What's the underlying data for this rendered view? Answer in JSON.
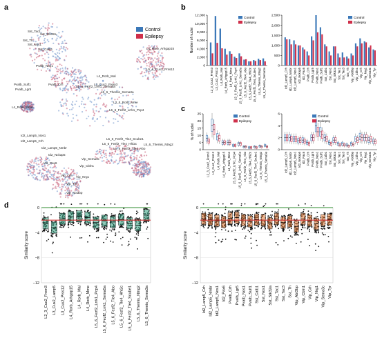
{
  "panels": {
    "a": "a",
    "b": "b",
    "c": "c",
    "d": "d"
  },
  "colors": {
    "control": "#3b78b8",
    "epilepsy": "#cf2f4a",
    "green_line": "#2e8b2e",
    "red_line": "#d22d2d",
    "teal_box": "#2f9a7c",
    "orange_box": "#e07a38",
    "umap_blue": "#6a8fc8",
    "umap_red": "#c8607a",
    "grid": "#d9d9d9"
  },
  "panel_a": {
    "legend": [
      "Control",
      "Epilepsy"
    ],
    "clusters": [
      "Sst_Tac1",
      "Sst_Stk32a",
      "Sst_Th",
      "Sst_Nos1",
      "Sst_Calb1",
      "Pvalb_Nos1",
      "Pvalb_Sulf1",
      "Pvalb_Lgr5",
      "Pvalb_Crh",
      "L4_Rorb_Mme",
      "L4_Rorb_Arhgap15",
      "L5_6_Cux2_Prss12",
      "L4_Rorb_Mal",
      "L3_Cux2_Frem3",
      "L5_6_Fezf2_Lrrk1_Sema5a",
      "L5_6_Themis_Sema3a",
      "L5_6_Fezf2_Lrrk1_Pcp4",
      "L3_5_Rorb_Mme",
      "Id2_Lamp5_Nos1",
      "Id2_Lamp5_Crh",
      "Id2_Lamp5_Nmbr",
      "Id2_Nckap5",
      "Id2_Pax6",
      "Vip_Sema3c",
      "Vip_Cbln1",
      "Vip_Crh",
      "Vip_Tyr",
      "Vip_Nrg1",
      "Vip_Abi3bp",
      "L5_6_Fezf2_Tle4_Scube1",
      "L5_6_Fezf2_Tle4_Hhl2c",
      "L5_6_Fezf2_Tle4_Abo",
      "L5_6_Themis_Ntng2"
    ]
  },
  "chart_data": [
    {
      "type": "bar",
      "panel": "b-left",
      "ylabel": "Number of nuclei",
      "ylim": [
        0,
        12000
      ],
      "yticks": [
        "0",
        "2,000",
        "4,000",
        "6,000",
        "8,000",
        "10,000",
        "12,000"
      ],
      "legend": [
        "Control",
        "Epilepsy"
      ],
      "categories": [
        "L2_3_Cux2_Frem3",
        "L3_Cux2_Prss12",
        "L4_Rorb_Mal",
        "L4_Rorb_Arhgap15",
        "L4_Rorb_Mme",
        "L5_6_Fezf2_Lrrk1_Pcp4",
        "L5_6_Fezf2_Lrrk1_Sema5a",
        "L5_6_Fezf2_Tle4_Abo",
        "L5_6_Fezf2_Tle4_Hhl2c",
        "L5_6_Fezf2_Tle4_Scube1",
        "L5_6_Themis_Ntng2",
        "L5_6_Themis_Sema3a"
      ],
      "series": [
        {
          "name": "Control",
          "values": [
            5500,
            11800,
            8800,
            4000,
            3400,
            2100,
            2900,
            1400,
            1000,
            1300,
            1600,
            1700
          ]
        },
        {
          "name": "Epilepsy",
          "values": [
            2900,
            5400,
            4100,
            2600,
            2800,
            1800,
            2200,
            1500,
            1000,
            1100,
            1300,
            1000
          ]
        }
      ]
    },
    {
      "type": "bar",
      "panel": "b-right",
      "ylim": [
        0,
        2500
      ],
      "yticks": [
        "0",
        "500",
        "1,000",
        "1,500",
        "2,000",
        "2,500"
      ],
      "categories": [
        "Id2_Lamp5_Crh",
        "Id2_Lamp5_Nmbr",
        "Id2_Lamp5_Nos1",
        "Id2_Nckap5",
        "Id2_Pax6",
        "Pvalb_Crh",
        "Pvalb_Lgr5",
        "Pvalb_Nos1",
        "Pvalb_Sulf1",
        "Sst_Calb1",
        "Sst_Nos1",
        "Sst_Stk32a",
        "Sst_Tac1",
        "Sst_Tac3",
        "Sst_Th",
        "Vip_Abi3bp",
        "Vip_Cbln1",
        "Vip_Crh",
        "Vip_Nrg1",
        "Vip_Sema3c",
        "Vip_Tyr"
      ],
      "series": [
        {
          "name": "Control",
          "values": [
            1400,
            1300,
            1250,
            1000,
            900,
            700,
            1450,
            2500,
            1900,
            1050,
            700,
            950,
            600,
            650,
            450,
            600,
            1100,
            1350,
            1200,
            900,
            800
          ]
        },
        {
          "name": "Epilepsy",
          "values": [
            1300,
            1050,
            1050,
            1000,
            800,
            500,
            1250,
            1650,
            1550,
            950,
            500,
            950,
            400,
            400,
            350,
            500,
            950,
            1100,
            1150,
            1000,
            750
          ]
        }
      ]
    },
    {
      "type": "box",
      "panel": "c-left",
      "ylabel": "% of nuclei",
      "ylim": [
        0,
        25
      ],
      "yticks": [
        "0",
        "5",
        "10",
        "15",
        "20",
        "25"
      ],
      "legend": [
        "Control",
        "Epilepsy"
      ],
      "categories": [
        "L2_3_Cux2_Frem3",
        "L3_Cux2_Prss12",
        "L4_Rorb_Mal",
        "L4_Rorb_Arhgap15",
        "L4_Rorb_Mme",
        "L5_6_Fezf2_Lrrk1_Pcp4",
        "L5_6_Fezf2_Lrrk1_Sema5a",
        "L5_6_Fezf2_Tle4_Abo",
        "L5_6_Fezf2_Tle4_Hhl2c",
        "L5_6_Fezf2_Tle4_Scube1",
        "L5_6_Themis_Ntng2",
        "L5_6_Themis_Sema3a"
      ],
      "series": [
        {
          "name": "Control",
          "medians": [
            8,
            17,
            9,
            5,
            5,
            3,
            4,
            2,
            1.5,
            2,
            2.5,
            3
          ]
        },
        {
          "name": "Epilepsy",
          "medians": [
            6,
            14,
            8,
            5,
            5,
            3,
            4,
            2,
            1.5,
            1.5,
            2,
            2
          ]
        }
      ]
    },
    {
      "type": "box",
      "panel": "c-right",
      "ylim": [
        0,
        6
      ],
      "yticks": [
        "0",
        "2",
        "4",
        "6"
      ],
      "categories": [
        "Id2_Lamp5_Crh",
        "Id2_Lamp5_Nmbr",
        "Id2_Lamp5_Nos1",
        "Id2_Nckap5",
        "Id2_Pax6",
        "Pvalb_Crh",
        "Pvalb_Lgr5",
        "Pvalb_Nos1",
        "Pvalb_Sulf1",
        "Sst_Calb1",
        "Sst_Nos1",
        "Sst_Stk32a",
        "Sst_Tac1",
        "Sst_Tac3",
        "Sst_Th",
        "Vip_Abi3bp",
        "Vip_Cbln1",
        "Vip_Crh",
        "Vip_Nrg1",
        "Vip_Sema3c",
        "Vip_Tyr"
      ],
      "series": [
        {
          "name": "Control",
          "medians": [
            2,
            2,
            1.8,
            1.5,
            1.6,
            1.2,
            2,
            4,
            3,
            2,
            1.2,
            1.6,
            1,
            1,
            0.8,
            1,
            1.8,
            2.2,
            2,
            1.6,
            1.4
          ]
        },
        {
          "name": "Epilepsy",
          "medians": [
            2,
            1.8,
            1.8,
            1.6,
            1.4,
            1,
            2,
            3,
            2.5,
            1.8,
            1,
            1.6,
            0.8,
            0.8,
            0.6,
            0.9,
            1.6,
            2,
            2,
            1.8,
            1.3
          ]
        }
      ]
    },
    {
      "type": "box",
      "panel": "d-left",
      "ylabel": "Similarity score",
      "ylim": [
        -12,
        0
      ],
      "yticks": [
        "−12",
        "−8",
        "−4",
        "0"
      ],
      "reference_lines": [
        0,
        -2
      ],
      "categories": [
        "L2_3_Cux2_Frem3",
        "L3_Cux2_Lamp5",
        "L3_Cux2_Prss12",
        "L4_Rorb_Arhgap15",
        "L4_Rorb_Mal",
        "L4_Rorb_Mme",
        "L5_6_Fezf2_Lrrk1_Pcp4",
        "L5_6_Fezf2_Lrrk1_Sema5a",
        "L5_6_Fezf2_Tle4_Abo",
        "L5_6_Fezf2_Tle4_Hhl2c",
        "L5_6_Fezf2_Tle4_Scube1",
        "L5_6_Themis_Ntng2",
        "L5_6_Themis_Sema3a"
      ],
      "medians": [
        -2.5,
        -3.2,
        -1.8,
        -1.5,
        -1.4,
        -1.6,
        -2.4,
        -2.1,
        -2.3,
        -1.9,
        -2.5,
        -2.8,
        -1.2
      ]
    },
    {
      "type": "box",
      "panel": "d-right",
      "ylabel": "Similarity score",
      "ylim": [
        -12,
        0
      ],
      "yticks": [
        "−12",
        "−8",
        "−4",
        "0"
      ],
      "reference_lines": [
        0,
        -2
      ],
      "categories": [
        "Id2_Lamp5_Crh",
        "Id2_Lamp5_Nmbr",
        "Id2_Lamp5_Nos1",
        "Id2_Pax6",
        "Pvalb_Crh",
        "Pvalb_Lgr5",
        "Pvalb_Nos1",
        "Pvalb_Sulf1",
        "Sst_Calb1",
        "Sst_Nos1",
        "Sst_Stk32a",
        "Sst_Tac1",
        "Sst_Tac3",
        "Sst_Th",
        "Vip_Abi3bp",
        "Vip_Cbln1",
        "Vip_Crh",
        "Vip_Nrg1",
        "Vip_Sema3c",
        "Vip_Tyr"
      ],
      "medians": [
        -1.8,
        -1.9,
        -2.1,
        -2.3,
        -1.7,
        -1.6,
        -2.0,
        -2.2,
        -1.9,
        -2.0,
        -2.5,
        -1.8,
        -2.4,
        -2.2,
        -3.0,
        -1.8,
        -2.1,
        -2.6,
        -2.0,
        -1.9
      ]
    }
  ]
}
